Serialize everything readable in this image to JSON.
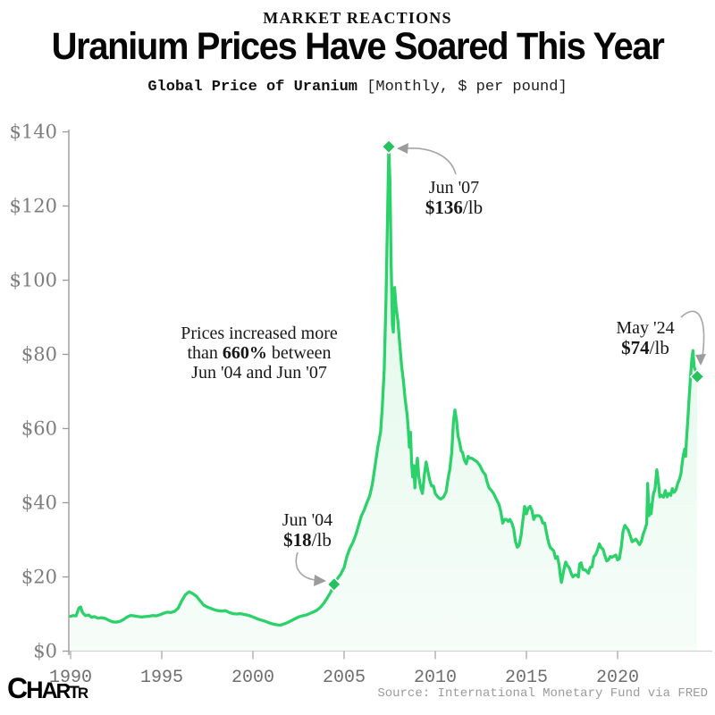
{
  "header": {
    "kicker": "MARKET REACTIONS",
    "title": "Uranium Prices Have Soared This Year",
    "subtitle_bold": "Global Price of Uranium",
    "subtitle_note": "[Monthly, $ per pound]"
  },
  "annotations": {
    "note": {
      "line1": "Prices increased more",
      "line2_pre": "than ",
      "line2_bold": "660%",
      "line2_post": " between",
      "line3": "Jun '04 and Jun '07"
    }
  },
  "footer": {
    "logo_letters": [
      "C",
      "H",
      "A",
      "R",
      "T",
      "R"
    ],
    "source": "Source: International Monetary Fund via FRED"
  },
  "chart_data": {
    "type": "area",
    "title": "Global Price of Uranium",
    "frequency": "Monthly",
    "units": "$ per pound",
    "xlabel": "",
    "ylabel": "",
    "xlim": [
      1990,
      2024.6
    ],
    "ylim": [
      0,
      140
    ],
    "grid": false,
    "legend": "none",
    "x_ticks": [
      "1990",
      "1995",
      "2000",
      "2005",
      "2010",
      "2015",
      "2020"
    ],
    "x_tick_values": [
      1990,
      1995,
      2000,
      2005,
      2010,
      2015,
      2020
    ],
    "y_ticks": [
      "$0",
      "$20",
      "$40",
      "$60",
      "$80",
      "$100",
      "$120",
      "$140"
    ],
    "y_tick_values": [
      0,
      20,
      40,
      60,
      80,
      100,
      120,
      140
    ],
    "line_color": "#2bd169",
    "marker_color": "#27c260",
    "fill_color_top": "rgba(45,208,106,0.16)",
    "fill_color_bottom": "rgba(45,208,106,0.04)",
    "markers": [
      {
        "x": 2004.45,
        "y": 18,
        "label": "Jun '04",
        "value": "$18",
        "unit": "/lb"
      },
      {
        "x": 2007.45,
        "y": 136,
        "label": "Jun '07",
        "value": "$136",
        "unit": "/lb"
      },
      {
        "x": 2024.37,
        "y": 74,
        "label": "May '24",
        "value": "$74",
        "unit": "/lb"
      }
    ],
    "series": [
      {
        "name": "Global price of uranium ($/lb)",
        "points": [
          [
            1990.0,
            9.4
          ],
          [
            1990.15,
            9.6
          ],
          [
            1990.3,
            9.5
          ],
          [
            1990.45,
            11.6
          ],
          [
            1990.55,
            11.9
          ],
          [
            1990.65,
            10.4
          ],
          [
            1990.8,
            9.6
          ],
          [
            1991.0,
            9.7
          ],
          [
            1991.15,
            9.1
          ],
          [
            1991.3,
            9.3
          ],
          [
            1991.5,
            8.9
          ],
          [
            1991.7,
            9.0
          ],
          [
            1991.9,
            8.8
          ],
          [
            1992.1,
            8.3
          ],
          [
            1992.3,
            7.9
          ],
          [
            1992.5,
            7.8
          ],
          [
            1992.7,
            8.0
          ],
          [
            1992.9,
            8.5
          ],
          [
            1993.1,
            9.2
          ],
          [
            1993.3,
            9.6
          ],
          [
            1993.5,
            9.5
          ],
          [
            1993.7,
            9.3
          ],
          [
            1993.9,
            9.2
          ],
          [
            1994.1,
            9.3
          ],
          [
            1994.3,
            9.4
          ],
          [
            1994.5,
            9.6
          ],
          [
            1994.7,
            9.5
          ],
          [
            1994.9,
            9.8
          ],
          [
            1995.1,
            10.2
          ],
          [
            1995.3,
            10.5
          ],
          [
            1995.5,
            10.4
          ],
          [
            1995.7,
            10.7
          ],
          [
            1995.9,
            11.6
          ],
          [
            1996.1,
            13.6
          ],
          [
            1996.3,
            15.2
          ],
          [
            1996.5,
            16.0
          ],
          [
            1996.7,
            15.5
          ],
          [
            1996.9,
            14.8
          ],
          [
            1997.1,
            13.6
          ],
          [
            1997.3,
            12.4
          ],
          [
            1997.5,
            11.9
          ],
          [
            1997.7,
            11.5
          ],
          [
            1997.9,
            11.1
          ],
          [
            1998.1,
            10.9
          ],
          [
            1998.3,
            10.8
          ],
          [
            1998.5,
            10.9
          ],
          [
            1998.7,
            10.4
          ],
          [
            1998.9,
            10.1
          ],
          [
            1999.1,
            10.0
          ],
          [
            1999.3,
            10.1
          ],
          [
            1999.5,
            9.9
          ],
          [
            1999.7,
            9.7
          ],
          [
            1999.9,
            9.4
          ],
          [
            2000.1,
            9.0
          ],
          [
            2000.3,
            8.6
          ],
          [
            2000.5,
            8.3
          ],
          [
            2000.7,
            8.0
          ],
          [
            2000.9,
            7.6
          ],
          [
            2001.1,
            7.3
          ],
          [
            2001.3,
            7.1
          ],
          [
            2001.5,
            7.0
          ],
          [
            2001.7,
            7.3
          ],
          [
            2001.9,
            7.7
          ],
          [
            2002.1,
            8.2
          ],
          [
            2002.3,
            8.7
          ],
          [
            2002.5,
            9.2
          ],
          [
            2002.7,
            9.5
          ],
          [
            2002.9,
            9.7
          ],
          [
            2003.1,
            10.1
          ],
          [
            2003.3,
            10.5
          ],
          [
            2003.5,
            11.0
          ],
          [
            2003.7,
            11.8
          ],
          [
            2003.9,
            13.0
          ],
          [
            2004.1,
            14.5
          ],
          [
            2004.3,
            16.2
          ],
          [
            2004.45,
            18.0
          ],
          [
            2004.6,
            19.3
          ],
          [
            2004.8,
            20.6
          ],
          [
            2005.0,
            22.5
          ],
          [
            2005.15,
            25.5
          ],
          [
            2005.3,
            27.5
          ],
          [
            2005.5,
            29.5
          ],
          [
            2005.65,
            31.5
          ],
          [
            2005.8,
            34.0
          ],
          [
            2005.95,
            36.5
          ],
          [
            2006.1,
            38.0
          ],
          [
            2006.25,
            40.0
          ],
          [
            2006.4,
            41.8
          ],
          [
            2006.55,
            45.0
          ],
          [
            2006.7,
            50.0
          ],
          [
            2006.85,
            55.0
          ],
          [
            2007.0,
            59.0
          ],
          [
            2007.1,
            66.0
          ],
          [
            2007.2,
            76.0
          ],
          [
            2007.3,
            95.0
          ],
          [
            2007.38,
            117.0
          ],
          [
            2007.45,
            136.0
          ],
          [
            2007.52,
            126.0
          ],
          [
            2007.58,
            105.0
          ],
          [
            2007.65,
            88.0
          ],
          [
            2007.7,
            86.0
          ],
          [
            2007.77,
            98.0
          ],
          [
            2007.85,
            93.0
          ],
          [
            2007.95,
            89.0
          ],
          [
            2008.05,
            83.0
          ],
          [
            2008.15,
            77.0
          ],
          [
            2008.25,
            73.0
          ],
          [
            2008.35,
            68.0
          ],
          [
            2008.45,
            64.0
          ],
          [
            2008.52,
            60.0
          ],
          [
            2008.58,
            55.0
          ],
          [
            2008.64,
            59.0
          ],
          [
            2008.7,
            51.0
          ],
          [
            2008.76,
            47.0
          ],
          [
            2008.82,
            50.0
          ],
          [
            2008.88,
            44.0
          ],
          [
            2008.95,
            49.0
          ],
          [
            2009.02,
            52.0
          ],
          [
            2009.1,
            47.0
          ],
          [
            2009.2,
            44.0
          ],
          [
            2009.3,
            42.5
          ],
          [
            2009.4,
            47.5
          ],
          [
            2009.5,
            51.0
          ],
          [
            2009.6,
            48.5
          ],
          [
            2009.7,
            46.0
          ],
          [
            2009.8,
            44.5
          ],
          [
            2009.9,
            44.5
          ],
          [
            2010.0,
            42.5
          ],
          [
            2010.15,
            41.5
          ],
          [
            2010.3,
            41.0
          ],
          [
            2010.45,
            41.5
          ],
          [
            2010.6,
            43.0
          ],
          [
            2010.7,
            46.5
          ],
          [
            2010.8,
            49.0
          ],
          [
            2010.9,
            53.5
          ],
          [
            2011.0,
            62.0
          ],
          [
            2011.08,
            65.0
          ],
          [
            2011.16,
            62.5
          ],
          [
            2011.25,
            58.0
          ],
          [
            2011.33,
            56.5
          ],
          [
            2011.42,
            54.0
          ],
          [
            2011.5,
            53.5
          ],
          [
            2011.6,
            51.5
          ],
          [
            2011.7,
            50.5
          ],
          [
            2011.8,
            52.5
          ],
          [
            2011.9,
            52.0
          ],
          [
            2012.0,
            52.0
          ],
          [
            2012.15,
            51.5
          ],
          [
            2012.3,
            51.0
          ],
          [
            2012.45,
            50.0
          ],
          [
            2012.6,
            48.5
          ],
          [
            2012.75,
            47.5
          ],
          [
            2012.85,
            45.5
          ],
          [
            2012.95,
            44.0
          ],
          [
            2013.05,
            43.5
          ],
          [
            2013.2,
            42.5
          ],
          [
            2013.35,
            41.0
          ],
          [
            2013.5,
            39.5
          ],
          [
            2013.6,
            37.5
          ],
          [
            2013.7,
            34.5
          ],
          [
            2013.8,
            35.5
          ],
          [
            2013.9,
            35.5
          ],
          [
            2014.0,
            35.0
          ],
          [
            2014.1,
            35.5
          ],
          [
            2014.2,
            34.5
          ],
          [
            2014.3,
            33.0
          ],
          [
            2014.4,
            29.5
          ],
          [
            2014.5,
            28.0
          ],
          [
            2014.6,
            28.5
          ],
          [
            2014.7,
            31.0
          ],
          [
            2014.8,
            35.0
          ],
          [
            2014.9,
            39.0
          ],
          [
            2015.0,
            37.0
          ],
          [
            2015.1,
            38.5
          ],
          [
            2015.2,
            39.0
          ],
          [
            2015.3,
            38.0
          ],
          [
            2015.4,
            35.5
          ],
          [
            2015.5,
            36.5
          ],
          [
            2015.6,
            36.5
          ],
          [
            2015.7,
            36.5
          ],
          [
            2015.8,
            36.0
          ],
          [
            2015.9,
            34.5
          ],
          [
            2016.0,
            34.5
          ],
          [
            2016.1,
            32.0
          ],
          [
            2016.2,
            29.5
          ],
          [
            2016.3,
            28.0
          ],
          [
            2016.4,
            27.5
          ],
          [
            2016.5,
            27.0
          ],
          [
            2016.6,
            25.0
          ],
          [
            2016.7,
            25.5
          ],
          [
            2016.8,
            23.0
          ],
          [
            2016.87,
            20.0
          ],
          [
            2016.92,
            18.5
          ],
          [
            2017.0,
            20.5
          ],
          [
            2017.08,
            22.5
          ],
          [
            2017.15,
            24.0
          ],
          [
            2017.25,
            23.0
          ],
          [
            2017.35,
            22.5
          ],
          [
            2017.45,
            21.0
          ],
          [
            2017.55,
            20.0
          ],
          [
            2017.65,
            20.5
          ],
          [
            2017.75,
            20.5
          ],
          [
            2017.85,
            20.0
          ],
          [
            2017.92,
            23.5
          ],
          [
            2018.0,
            23.8
          ],
          [
            2018.1,
            22.0
          ],
          [
            2018.25,
            21.8
          ],
          [
            2018.4,
            21.0
          ],
          [
            2018.5,
            22.6
          ],
          [
            2018.6,
            22.7
          ],
          [
            2018.7,
            25.5
          ],
          [
            2018.8,
            26.0
          ],
          [
            2018.9,
            27.3
          ],
          [
            2019.0,
            28.9
          ],
          [
            2019.1,
            27.9
          ],
          [
            2019.2,
            27.5
          ],
          [
            2019.3,
            25.8
          ],
          [
            2019.4,
            24.3
          ],
          [
            2019.5,
            24.6
          ],
          [
            2019.6,
            25.5
          ],
          [
            2019.7,
            25.3
          ],
          [
            2019.8,
            25.6
          ],
          [
            2019.9,
            25.9
          ],
          [
            2020.0,
            24.6
          ],
          [
            2020.1,
            24.9
          ],
          [
            2020.2,
            28.0
          ],
          [
            2020.3,
            32.3
          ],
          [
            2020.4,
            33.9
          ],
          [
            2020.5,
            33.2
          ],
          [
            2020.6,
            32.5
          ],
          [
            2020.7,
            31.0
          ],
          [
            2020.8,
            29.5
          ],
          [
            2020.9,
            29.8
          ],
          [
            2021.0,
            30.2
          ],
          [
            2021.1,
            29.5
          ],
          [
            2021.2,
            28.7
          ],
          [
            2021.3,
            29.5
          ],
          [
            2021.4,
            31.5
          ],
          [
            2021.5,
            32.8
          ],
          [
            2021.6,
            34.4
          ],
          [
            2021.65,
            45.2
          ],
          [
            2021.72,
            36.5
          ],
          [
            2021.78,
            39.5
          ],
          [
            2021.84,
            37.0
          ],
          [
            2021.9,
            40.0
          ],
          [
            2021.97,
            42.5
          ],
          [
            2022.05,
            43.5
          ],
          [
            2022.15,
            48.9
          ],
          [
            2022.25,
            45.0
          ],
          [
            2022.32,
            41.6
          ],
          [
            2022.42,
            42.0
          ],
          [
            2022.52,
            41.5
          ],
          [
            2022.62,
            43.3
          ],
          [
            2022.72,
            41.6
          ],
          [
            2022.82,
            42.5
          ],
          [
            2022.92,
            42.0
          ],
          [
            2023.0,
            43.8
          ],
          [
            2023.1,
            42.8
          ],
          [
            2023.2,
            43.5
          ],
          [
            2023.3,
            45.2
          ],
          [
            2023.4,
            46.4
          ],
          [
            2023.48,
            48.0
          ],
          [
            2023.55,
            51.0
          ],
          [
            2023.62,
            53.0
          ],
          [
            2023.68,
            54.5
          ],
          [
            2023.73,
            52.5
          ],
          [
            2023.78,
            57.0
          ],
          [
            2023.85,
            62.0
          ],
          [
            2023.92,
            68.0
          ],
          [
            2024.0,
            74.0
          ],
          [
            2024.07,
            78.5
          ],
          [
            2024.13,
            81.0
          ],
          [
            2024.2,
            76.5
          ],
          [
            2024.3,
            75.5
          ],
          [
            2024.37,
            74.0
          ]
        ]
      }
    ]
  }
}
